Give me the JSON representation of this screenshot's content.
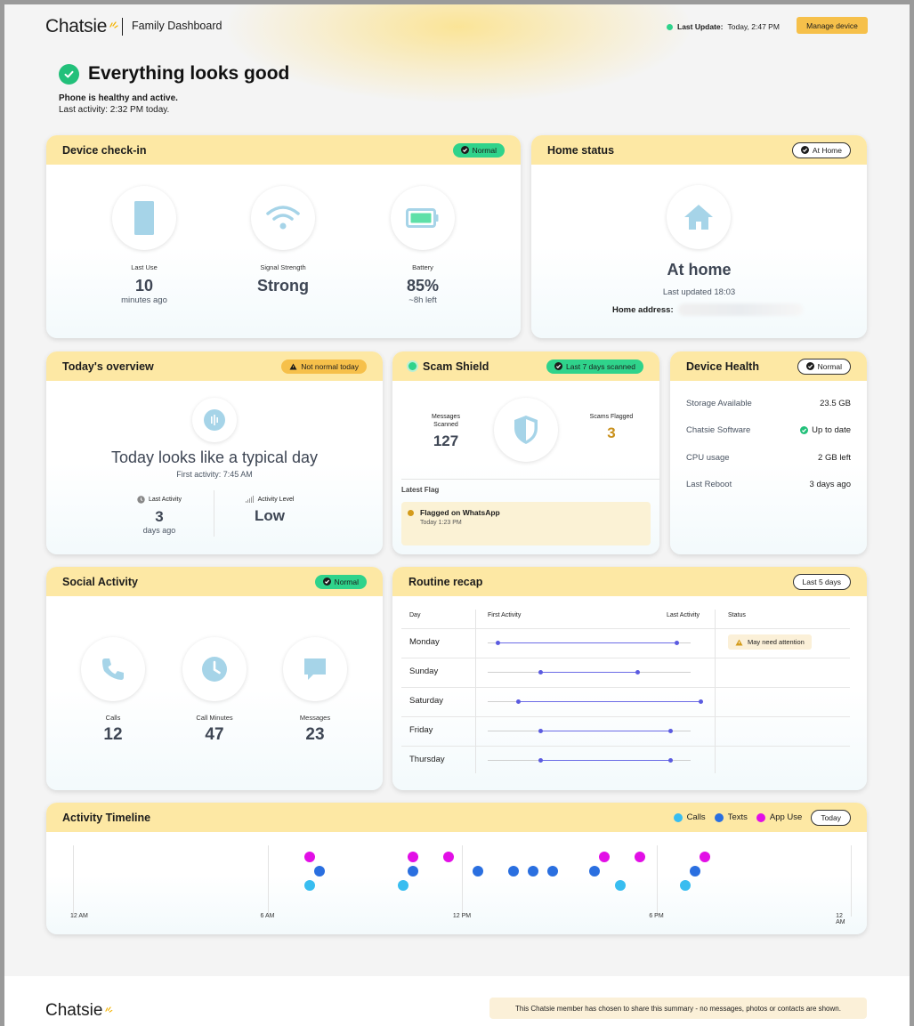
{
  "header": {
    "brand": "Chatsie",
    "title": "Family Dashboard",
    "last_update_label": "Last Update:",
    "last_update_value": "Today, 2:47 PM",
    "manage_button": "Manage device"
  },
  "hero": {
    "title": "Everything looks good",
    "line1": "Phone is healthy and active.",
    "line2": "Last activity: 2:32 PM today."
  },
  "device_checkin": {
    "title": "Device check-in",
    "badge": "Normal",
    "items": [
      {
        "icon": "phone-icon",
        "label": "Last Use",
        "value": "10",
        "sub": "minutes ago"
      },
      {
        "icon": "wifi-icon",
        "label": "Signal Strength",
        "value": "Strong",
        "sub": ""
      },
      {
        "icon": "battery-icon",
        "label": "Battery",
        "value": "85%",
        "sub": "~8h left"
      }
    ]
  },
  "home_status": {
    "title": "Home status",
    "badge": "At Home",
    "value": "At home",
    "updated": "Last updated 18:03",
    "address_label": "Home address:"
  },
  "overview": {
    "title": "Today's overview",
    "badge": "Not normal today",
    "headline": "Today looks like a typical day",
    "first_activity": "First activity: 7:45 AM",
    "last_activity_label": "Last Activity",
    "last_activity_value": "3",
    "last_activity_sub": "days ago",
    "activity_level_label": "Activity Level",
    "activity_level_value": "Low"
  },
  "scam_shield": {
    "title": "Scam Shield",
    "badge": "Last 7 days scanned",
    "scanned_label": "Messages Scanned",
    "scanned_value": "127",
    "flagged_label": "Scams Flagged",
    "flagged_value": "3",
    "latest_label": "Latest Flag",
    "flag_title": "Flagged on WhatsApp",
    "flag_time": "Today 1:23 PM"
  },
  "device_health": {
    "title": "Device Health",
    "badge": "Normal",
    "rows": [
      {
        "key": "Storage Available",
        "value": "23.5 GB"
      },
      {
        "key": "Chatsie Software",
        "value": "Up to date"
      },
      {
        "key": "CPU usage",
        "value": "2 GB left"
      },
      {
        "key": "Last Reboot",
        "value": "3 days ago"
      }
    ]
  },
  "social": {
    "title": "Social Activity",
    "badge": "Normal",
    "items": [
      {
        "icon": "phone-call-icon",
        "label": "Calls",
        "value": "12"
      },
      {
        "icon": "clock-icon",
        "label": "Call Minutes",
        "value": "47"
      },
      {
        "icon": "message-icon",
        "label": "Messages",
        "value": "23"
      }
    ]
  },
  "routine": {
    "title": "Routine recap",
    "badge": "Last 5 days",
    "col_day": "Day",
    "col_first": "First Activity",
    "col_last": "Last Activity",
    "col_status": "Status",
    "rows": [
      {
        "day": "Monday",
        "start": 0.05,
        "end": 0.93,
        "status": "May need attention"
      },
      {
        "day": "Sunday",
        "start": 0.26,
        "end": 0.74,
        "status": ""
      },
      {
        "day": "Saturday",
        "start": 0.15,
        "end": 1.05,
        "status": ""
      },
      {
        "day": "Friday",
        "start": 0.26,
        "end": 0.9,
        "status": ""
      },
      {
        "day": "Thursday",
        "start": 0.26,
        "end": 0.9,
        "status": ""
      }
    ]
  },
  "timeline": {
    "title": "Activity Timeline",
    "legend": [
      {
        "name": "Calls",
        "color": "#38bdf0"
      },
      {
        "name": "Texts",
        "color": "#2a6fe0"
      },
      {
        "name": "App Use",
        "color": "#e20fe6"
      }
    ],
    "badge": "Today",
    "ticks": [
      "12 AM",
      "6 AM",
      "12 PM",
      "6 PM",
      "12 AM"
    ],
    "events": [
      {
        "series": "App Use",
        "hour": 7.3
      },
      {
        "series": "Texts",
        "hour": 7.6
      },
      {
        "series": "Calls",
        "hour": 7.3
      },
      {
        "series": "App Use",
        "hour": 10.5
      },
      {
        "series": "Texts",
        "hour": 10.5
      },
      {
        "series": "Calls",
        "hour": 10.2
      },
      {
        "series": "App Use",
        "hour": 11.6
      },
      {
        "series": "Texts",
        "hour": 12.5
      },
      {
        "series": "Texts",
        "hour": 13.6
      },
      {
        "series": "Texts",
        "hour": 14.2
      },
      {
        "series": "Texts",
        "hour": 14.8
      },
      {
        "series": "App Use",
        "hour": 16.4
      },
      {
        "series": "Texts",
        "hour": 16.1
      },
      {
        "series": "Calls",
        "hour": 16.9
      },
      {
        "series": "App Use",
        "hour": 17.5
      },
      {
        "series": "App Use",
        "hour": 19.5
      },
      {
        "series": "Texts",
        "hour": 19.2
      },
      {
        "series": "Calls",
        "hour": 18.9
      }
    ]
  },
  "footer": {
    "brand": "Chatsie",
    "notice": "This Chatsie member has chosen to share this summary - no messages, photos or contacts are shown."
  }
}
